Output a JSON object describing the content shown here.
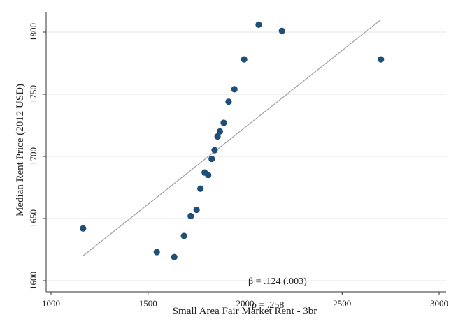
{
  "chart_data": {
    "type": "scatter",
    "title": "",
    "xlabel": "Small Area Fair Market Rent - 3br",
    "ylabel": "Median Rent Price (2012 USD)",
    "xlim": [
      1000,
      3000
    ],
    "ylim": [
      1600,
      1810
    ],
    "xticks": [
      1000,
      1500,
      2000,
      2500,
      3000
    ],
    "yticks": [
      1600,
      1650,
      1700,
      1750,
      1800
    ],
    "grid": true,
    "legend": "none",
    "colors": {
      "points": "#1f4e79",
      "fit_line": "#a0a0a0",
      "grid": "#e6e6e6",
      "axis": "#333333"
    },
    "points": [
      {
        "x": 1165,
        "y": 1642
      },
      {
        "x": 1545,
        "y": 1623
      },
      {
        "x": 1635,
        "y": 1619
      },
      {
        "x": 1685,
        "y": 1636
      },
      {
        "x": 1720,
        "y": 1652
      },
      {
        "x": 1750,
        "y": 1657
      },
      {
        "x": 1770,
        "y": 1674
      },
      {
        "x": 1792,
        "y": 1687
      },
      {
        "x": 1810,
        "y": 1685
      },
      {
        "x": 1828,
        "y": 1698
      },
      {
        "x": 1843,
        "y": 1705
      },
      {
        "x": 1858,
        "y": 1716
      },
      {
        "x": 1870,
        "y": 1720
      },
      {
        "x": 1890,
        "y": 1727
      },
      {
        "x": 1915,
        "y": 1744
      },
      {
        "x": 1945,
        "y": 1754
      },
      {
        "x": 1995,
        "y": 1778
      },
      {
        "x": 2070,
        "y": 1806
      },
      {
        "x": 2190,
        "y": 1801
      },
      {
        "x": 2700,
        "y": 1778
      }
    ],
    "fit_line": {
      "x": [
        1165,
        2700
      ],
      "y": [
        1620,
        1810
      ]
    },
    "annotations": {
      "beta": "β = .124 (.003)",
      "rho": "ρ = .258"
    }
  }
}
